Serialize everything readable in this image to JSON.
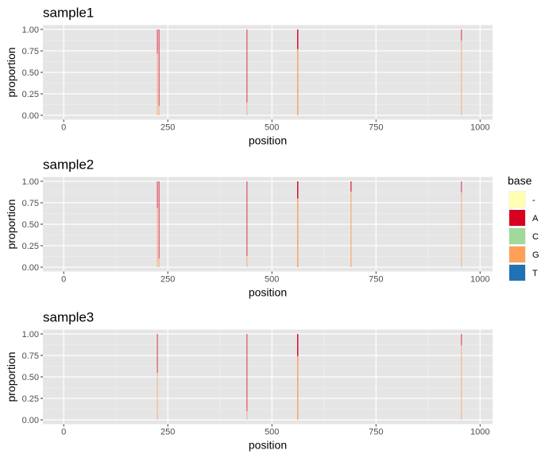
{
  "chart_data": [
    {
      "type": "bar",
      "title": "sample1",
      "xlabel": "position",
      "ylabel": "proportion",
      "xlim": [
        -50,
        1030
      ],
      "ylim": [
        -0.05,
        1.05
      ],
      "xticks": [
        "0",
        "250",
        "500",
        "750",
        "1000"
      ],
      "yticks": [
        "0.00",
        "0.25",
        "0.50",
        "0.75",
        "1.00"
      ],
      "grid": true,
      "sites": [
        {
          "position": 225,
          "A": 0.28,
          "G": 0.72,
          "opacity": 0.55
        },
        {
          "position": 229,
          "A": 0.89,
          "G": 0.11,
          "opacity": 0.55
        },
        {
          "position": 440,
          "A": 0.85,
          "G": 0.15,
          "opacity": 0.55
        },
        {
          "position": 562,
          "A": 0.23,
          "G": 0.77,
          "opacity": 1
        },
        {
          "position": 955,
          "A": 0.13,
          "G": 0.87,
          "opacity": 0.55
        }
      ]
    },
    {
      "type": "bar",
      "title": "sample2",
      "xlabel": "position",
      "ylabel": "proportion",
      "xlim": [
        -50,
        1030
      ],
      "ylim": [
        -0.05,
        1.05
      ],
      "xticks": [
        "0",
        "250",
        "500",
        "750",
        "1000"
      ],
      "yticks": [
        "0.00",
        "0.25",
        "0.50",
        "0.75",
        "1.00"
      ],
      "grid": true,
      "sites": [
        {
          "position": 225,
          "A": 0.31,
          "G": 0.69,
          "opacity": 0.55
        },
        {
          "position": 229,
          "A": 0.9,
          "G": 0.1,
          "opacity": 0.55
        },
        {
          "position": 440,
          "A": 0.87,
          "G": 0.13,
          "opacity": 0.55
        },
        {
          "position": 562,
          "A": 0.2,
          "G": 0.8,
          "opacity": 1
        },
        {
          "position": 690,
          "A": 0.12,
          "G": 0.88,
          "opacity": 0.75
        },
        {
          "position": 955,
          "A": 0.13,
          "G": 0.87,
          "opacity": 0.55
        }
      ]
    },
    {
      "type": "bar",
      "title": "sample3",
      "xlabel": "position",
      "ylabel": "proportion",
      "xlim": [
        -50,
        1030
      ],
      "ylim": [
        -0.05,
        1.05
      ],
      "xticks": [
        "0",
        "250",
        "500",
        "750",
        "1000"
      ],
      "yticks": [
        "0.00",
        "0.25",
        "0.50",
        "0.75",
        "1.00"
      ],
      "grid": true,
      "sites": [
        {
          "position": 225,
          "A": 0.45,
          "G": 0.55,
          "opacity": 0.55
        },
        {
          "position": 440,
          "A": 0.9,
          "G": 0.1,
          "opacity": 0.55
        },
        {
          "position": 562,
          "A": 0.26,
          "G": 0.74,
          "opacity": 1
        },
        {
          "position": 955,
          "A": 0.13,
          "G": 0.87,
          "opacity": 0.55
        }
      ]
    }
  ],
  "legend": {
    "title": "base",
    "placement": "right",
    "items": [
      {
        "label": "-",
        "color": "#FFFFB2"
      },
      {
        "label": "A",
        "color": "#D7001F"
      },
      {
        "label": "C",
        "color": "#A1D99B"
      },
      {
        "label": "G",
        "color": "#FDA058"
      },
      {
        "label": "T",
        "color": "#2171B5"
      }
    ]
  },
  "colors": {
    "panel_bg": "#E5E5E5",
    "grid": "#FFFFFF"
  }
}
